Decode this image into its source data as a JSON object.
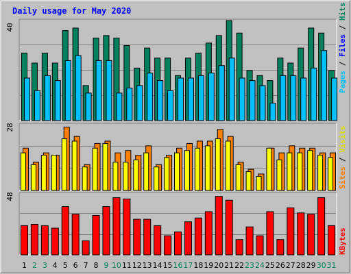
{
  "chart_data": [
    {
      "type": "bar",
      "title": "Daily usage for May 2020",
      "categories": [
        "1",
        "2",
        "3",
        "4",
        "5",
        "6",
        "7",
        "8",
        "9",
        "10",
        "11",
        "12",
        "13",
        "14",
        "15",
        "16",
        "17",
        "18",
        "19",
        "20",
        "21",
        "22",
        "23",
        "24",
        "25",
        "26",
        "27",
        "28",
        "29",
        "30",
        "31"
      ],
      "weekend_days": [
        "2",
        "3",
        "9",
        "10",
        "16",
        "17",
        "23",
        "24",
        "30",
        "31"
      ],
      "ymax_label": "40",
      "ylim": [
        0,
        40
      ],
      "series": [
        {
          "name": "Hits",
          "color": "#00805c",
          "values": [
            27,
            23,
            27,
            23,
            36,
            37,
            14,
            33,
            34,
            33,
            30,
            21,
            29,
            25,
            25,
            18,
            25,
            27,
            31,
            34,
            40,
            35,
            20,
            18,
            16,
            25,
            23,
            29,
            37,
            35,
            20
          ]
        },
        {
          "name": "Files",
          "color": "#00c0ff",
          "values": [
            17,
            12,
            18,
            16,
            24,
            26,
            11,
            24,
            24,
            11,
            13,
            14,
            19,
            16,
            12,
            17,
            17,
            18,
            19,
            22,
            25,
            17,
            16,
            14,
            7,
            18,
            18,
            17,
            21,
            28,
            17
          ]
        },
        {
          "name": "Pages",
          "color": "#00c0ff",
          "values": [
            0,
            0,
            0,
            0,
            0,
            0,
            0,
            0,
            0,
            0,
            0,
            0,
            0,
            0,
            0,
            0,
            0,
            0,
            0,
            0,
            0,
            0,
            0,
            0,
            0,
            0,
            0,
            0,
            0,
            0,
            0
          ]
        }
      ]
    },
    {
      "type": "bar",
      "categories": [
        "1",
        "2",
        "3",
        "4",
        "5",
        "6",
        "7",
        "8",
        "9",
        "10",
        "11",
        "12",
        "13",
        "14",
        "15",
        "16",
        "17",
        "18",
        "19",
        "20",
        "21",
        "22",
        "23",
        "24",
        "25",
        "26",
        "27",
        "28",
        "29",
        "30",
        "31"
      ],
      "ymax_label": "28",
      "ylim": [
        0,
        28
      ],
      "series": [
        {
          "name": "Sites",
          "color": "#ff8000",
          "values": [
            18,
            12,
            16,
            15,
            27,
            23,
            11,
            20,
            21,
            16,
            17,
            15,
            19,
            11,
            15,
            18,
            20,
            21,
            21,
            26,
            23,
            12,
            9,
            7,
            18,
            16,
            19,
            18,
            18,
            16,
            16
          ]
        },
        {
          "name": "Visits",
          "color": "#ffff00",
          "values": [
            16,
            11,
            15,
            15,
            22,
            21,
            10,
            18,
            20,
            12,
            12,
            13,
            16,
            10,
            14,
            16,
            17,
            18,
            19,
            22,
            21,
            11,
            8,
            6,
            18,
            13,
            16,
            16,
            17,
            15,
            14
          ]
        }
      ]
    },
    {
      "type": "bar",
      "categories": [
        "1",
        "2",
        "3",
        "4",
        "5",
        "6",
        "7",
        "8",
        "9",
        "10",
        "11",
        "12",
        "13",
        "14",
        "15",
        "16",
        "17",
        "18",
        "19",
        "20",
        "21",
        "22",
        "23",
        "24",
        "25",
        "26",
        "27",
        "28",
        "29",
        "30",
        "31"
      ],
      "ymax_label": "48",
      "ylim": [
        0,
        48
      ],
      "series": [
        {
          "name": "KBytes",
          "color": "#ff0000",
          "values": [
            23,
            24,
            23,
            21,
            38,
            32,
            11,
            31,
            38,
            45,
            44,
            28,
            28,
            23,
            15,
            18,
            26,
            29,
            34,
            46,
            43,
            12,
            22,
            15,
            34,
            12,
            37,
            33,
            32,
            45,
            23
          ]
        }
      ]
    }
  ],
  "legend": {
    "top": {
      "pages": "Pages",
      "sep1": " / ",
      "files": "Files",
      "sep2": " / ",
      "hits": "Hits"
    },
    "mid": {
      "sites": "Sites",
      "sep": " / ",
      "visits": "Visits"
    },
    "bottom": {
      "kbytes": "KBytes"
    }
  }
}
